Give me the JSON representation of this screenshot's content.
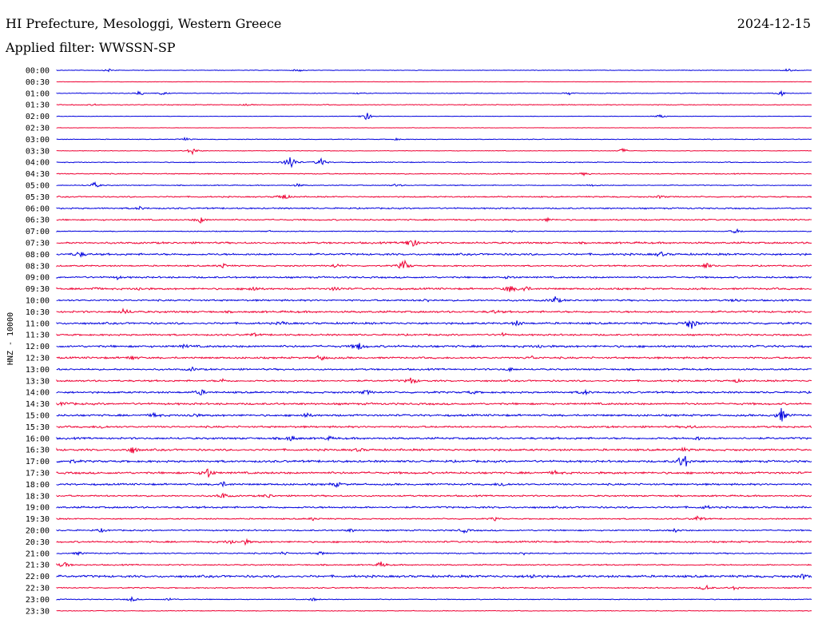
{
  "header": {
    "title": "HI Prefecture, Mesologgi, Western Greece",
    "date": "2024-12-15",
    "filter": "Applied filter: WWSSN-SP"
  },
  "chart_data": {
    "type": "line",
    "ylabel": "HNZ - 10000",
    "colors": [
      "#0000dd",
      "#ee0033"
    ],
    "row_labels": [
      "00:00",
      "00:30",
      "01:00",
      "01:30",
      "02:00",
      "02:30",
      "03:00",
      "03:30",
      "04:00",
      "04:30",
      "05:00",
      "05:30",
      "06:00",
      "06:30",
      "07:00",
      "07:30",
      "08:00",
      "08:30",
      "09:00",
      "09:30",
      "10:00",
      "10:30",
      "11:00",
      "11:30",
      "12:00",
      "12:30",
      "13:00",
      "13:30",
      "14:00",
      "14:30",
      "15:00",
      "15:30",
      "16:00",
      "16:30",
      "17:00",
      "17:30",
      "18:00",
      "18:30",
      "19:00",
      "19:30",
      "20:00",
      "20:30",
      "21:00",
      "21:30",
      "22:00",
      "22:30",
      "23:00",
      "23:30"
    ],
    "traces": [
      {
        "noise": 0.4,
        "events": [
          [
            0.07,
            2
          ],
          [
            0.32,
            2
          ],
          [
            0.97,
            3
          ]
        ]
      },
      {
        "noise": 0.3,
        "events": []
      },
      {
        "noise": 0.5,
        "events": [
          [
            0.11,
            3
          ],
          [
            0.14,
            2
          ],
          [
            0.4,
            1
          ],
          [
            0.68,
            2
          ],
          [
            0.96,
            3
          ]
        ]
      },
      {
        "noise": 0.6,
        "events": [
          [
            0.05,
            1
          ],
          [
            0.25,
            1
          ]
        ]
      },
      {
        "noise": 0.3,
        "events": [
          [
            0.41,
            6
          ],
          [
            0.8,
            3
          ]
        ]
      },
      {
        "noise": 0.3,
        "events": []
      },
      {
        "noise": 0.5,
        "events": [
          [
            0.17,
            2
          ],
          [
            0.45,
            1
          ]
        ]
      },
      {
        "noise": 0.4,
        "events": [
          [
            0.18,
            5
          ],
          [
            0.75,
            3
          ]
        ]
      },
      {
        "noise": 0.6,
        "events": [
          [
            0.31,
            11
          ],
          [
            0.35,
            6
          ]
        ]
      },
      {
        "noise": 0.7,
        "events": [
          [
            0.7,
            2
          ]
        ]
      },
      {
        "noise": 0.6,
        "events": [
          [
            0.05,
            4
          ],
          [
            0.32,
            2
          ],
          [
            0.45,
            2
          ],
          [
            0.71,
            2
          ]
        ]
      },
      {
        "noise": 0.9,
        "events": [
          [
            0.3,
            5
          ],
          [
            0.8,
            2
          ]
        ]
      },
      {
        "noise": 1.0,
        "events": [
          [
            0.11,
            2
          ]
        ]
      },
      {
        "noise": 1.0,
        "events": [
          [
            0.19,
            4
          ],
          [
            0.65,
            2
          ]
        ]
      },
      {
        "noise": 0.6,
        "events": [
          [
            0.28,
            1
          ],
          [
            0.6,
            1
          ],
          [
            0.9,
            3
          ]
        ]
      },
      {
        "noise": 1.3,
        "events": [
          [
            0.47,
            9
          ]
        ]
      },
      {
        "noise": 1.4,
        "events": [
          [
            0.03,
            4
          ],
          [
            0.8,
            3
          ]
        ]
      },
      {
        "noise": 1.0,
        "events": [
          [
            0.22,
            3
          ],
          [
            0.37,
            3
          ],
          [
            0.46,
            8
          ],
          [
            0.86,
            4
          ]
        ]
      },
      {
        "noise": 1.2,
        "events": [
          [
            0.08,
            2
          ],
          [
            0.6,
            2
          ]
        ]
      },
      {
        "noise": 1.3,
        "events": [
          [
            0.05,
            2
          ],
          [
            0.11,
            2
          ],
          [
            0.26,
            4
          ],
          [
            0.37,
            3
          ],
          [
            0.6,
            5
          ],
          [
            0.62,
            4
          ]
        ]
      },
      {
        "noise": 1.2,
        "events": [
          [
            0.49,
            2
          ],
          [
            0.66,
            5
          ],
          [
            0.9,
            2
          ]
        ]
      },
      {
        "noise": 1.4,
        "events": [
          [
            0.09,
            4
          ],
          [
            0.58,
            2
          ]
        ]
      },
      {
        "noise": 1.4,
        "events": [
          [
            0.3,
            2
          ],
          [
            0.61,
            3
          ],
          [
            0.84,
            9
          ]
        ]
      },
      {
        "noise": 1.2,
        "events": [
          [
            0.26,
            2
          ],
          [
            0.59,
            2
          ]
        ]
      },
      {
        "noise": 1.5,
        "events": [
          [
            0.17,
            2
          ],
          [
            0.4,
            5
          ],
          [
            0.64,
            2
          ]
        ]
      },
      {
        "noise": 1.3,
        "events": [
          [
            0.1,
            3
          ],
          [
            0.35,
            4
          ],
          [
            0.63,
            2
          ]
        ]
      },
      {
        "noise": 1.2,
        "events": [
          [
            0.18,
            2
          ],
          [
            0.6,
            2
          ]
        ]
      },
      {
        "noise": 1.2,
        "events": [
          [
            0.22,
            2
          ],
          [
            0.47,
            5
          ],
          [
            0.9,
            2
          ]
        ]
      },
      {
        "noise": 1.3,
        "events": [
          [
            0.19,
            4
          ],
          [
            0.41,
            3
          ],
          [
            0.55,
            2
          ],
          [
            0.7,
            3
          ]
        ]
      },
      {
        "noise": 1.4,
        "events": [
          [
            0.01,
            3
          ]
        ]
      },
      {
        "noise": 1.4,
        "events": [
          [
            0.13,
            3
          ],
          [
            0.18,
            3
          ],
          [
            0.33,
            3
          ],
          [
            0.96,
            9
          ]
        ]
      },
      {
        "noise": 1.3,
        "events": [
          [
            0.06,
            2
          ],
          [
            0.84,
            2
          ]
        ]
      },
      {
        "noise": 1.4,
        "events": [
          [
            0.31,
            4
          ],
          [
            0.36,
            2
          ],
          [
            0.85,
            2
          ]
        ]
      },
      {
        "noise": 1.4,
        "events": [
          [
            0.1,
            5
          ],
          [
            0.4,
            2
          ],
          [
            0.83,
            2
          ]
        ]
      },
      {
        "noise": 1.5,
        "events": [
          [
            0.02,
            2
          ],
          [
            0.83,
            13
          ]
        ]
      },
      {
        "noise": 1.5,
        "events": [
          [
            0.2,
            7
          ],
          [
            0.66,
            2
          ]
        ]
      },
      {
        "noise": 1.3,
        "events": [
          [
            0.22,
            3
          ],
          [
            0.37,
            3
          ],
          [
            0.59,
            3
          ]
        ]
      },
      {
        "noise": 1.1,
        "events": [
          [
            0.22,
            4
          ],
          [
            0.28,
            3
          ]
        ]
      },
      {
        "noise": 1.3,
        "events": [
          [
            0.86,
            2
          ]
        ]
      },
      {
        "noise": 0.9,
        "events": [
          [
            0.34,
            2
          ],
          [
            0.58,
            2
          ],
          [
            0.85,
            4
          ]
        ]
      },
      {
        "noise": 1.0,
        "events": [
          [
            0.06,
            2
          ],
          [
            0.39,
            2
          ],
          [
            0.54,
            3
          ],
          [
            0.82,
            2
          ]
        ]
      },
      {
        "noise": 1.2,
        "events": [
          [
            0.23,
            3
          ],
          [
            0.25,
            3
          ]
        ]
      },
      {
        "noise": 0.9,
        "events": [
          [
            0.03,
            2
          ],
          [
            0.3,
            2
          ],
          [
            0.35,
            2
          ],
          [
            0.62,
            2
          ]
        ]
      },
      {
        "noise": 0.9,
        "events": [
          [
            0.01,
            4
          ],
          [
            0.43,
            4
          ]
        ]
      },
      {
        "noise": 1.6,
        "events": [
          [
            0.63,
            3
          ],
          [
            0.99,
            3
          ]
        ]
      },
      {
        "noise": 0.8,
        "events": [
          [
            0.86,
            4
          ],
          [
            0.9,
            3
          ]
        ]
      },
      {
        "noise": 0.6,
        "events": [
          [
            0.1,
            3
          ],
          [
            0.15,
            2
          ],
          [
            0.34,
            2
          ]
        ]
      },
      {
        "noise": 0.5,
        "events": []
      }
    ]
  }
}
